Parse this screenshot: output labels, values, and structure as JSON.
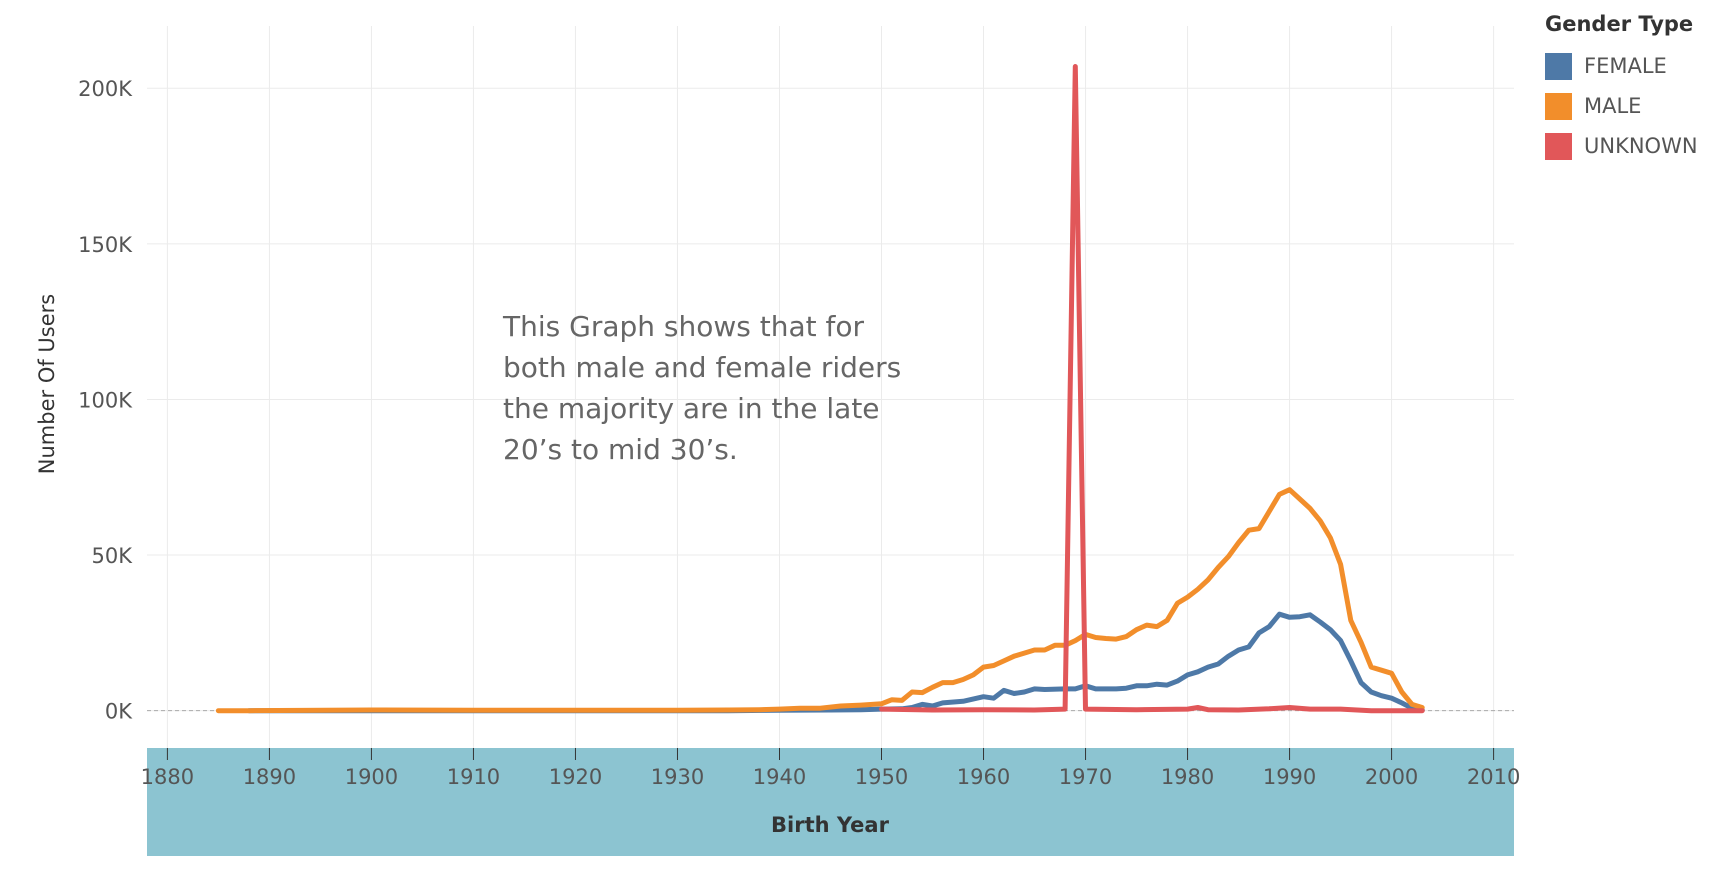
{
  "chart_data": {
    "type": "line",
    "xlabel": "Birth Year",
    "ylabel": "Number Of Users",
    "xlim": [
      1878,
      2012
    ],
    "ylim": [
      -12000,
      220000
    ],
    "x_ticks": [
      1880,
      1890,
      1900,
      1910,
      1920,
      1930,
      1940,
      1950,
      1960,
      1970,
      1980,
      1990,
      2000,
      2010
    ],
    "y_ticks": [
      {
        "value": 0,
        "label": "0K"
      },
      {
        "value": 50000,
        "label": "50K"
      },
      {
        "value": 100000,
        "label": "100K"
      },
      {
        "value": 150000,
        "label": "150K"
      },
      {
        "value": 200000,
        "label": "200K"
      }
    ],
    "grid": true,
    "annotation": [
      "This Graph shows that for",
      "both male and female riders",
      "the majority are in the late",
      "20’s to mid 30’s."
    ],
    "legend": {
      "title": "Gender Type",
      "placement": "top-right"
    },
    "series": [
      {
        "name": "FEMALE",
        "color": "#4e79a7",
        "points": [
          [
            1888,
            0
          ],
          [
            1890,
            0
          ],
          [
            1895,
            0
          ],
          [
            1900,
            0
          ],
          [
            1905,
            0
          ],
          [
            1910,
            0
          ],
          [
            1915,
            0
          ],
          [
            1920,
            0
          ],
          [
            1925,
            0
          ],
          [
            1930,
            0
          ],
          [
            1935,
            0
          ],
          [
            1940,
            100
          ],
          [
            1945,
            200
          ],
          [
            1948,
            300
          ],
          [
            1950,
            500
          ],
          [
            1952,
            600
          ],
          [
            1953,
            1000
          ],
          [
            1954,
            2000
          ],
          [
            1955,
            1500
          ],
          [
            1956,
            2500
          ],
          [
            1958,
            3000
          ],
          [
            1960,
            4500
          ],
          [
            1961,
            4000
          ],
          [
            1962,
            6500
          ],
          [
            1963,
            5500
          ],
          [
            1964,
            6000
          ],
          [
            1965,
            7000
          ],
          [
            1966,
            6800
          ],
          [
            1968,
            7000
          ],
          [
            1969,
            7000
          ],
          [
            1970,
            8000
          ],
          [
            1971,
            7000
          ],
          [
            1973,
            7000
          ],
          [
            1974,
            7200
          ],
          [
            1975,
            8000
          ],
          [
            1976,
            8000
          ],
          [
            1977,
            8500
          ],
          [
            1978,
            8200
          ],
          [
            1979,
            9500
          ],
          [
            1980,
            11500
          ],
          [
            1981,
            12500
          ],
          [
            1982,
            14000
          ],
          [
            1983,
            15000
          ],
          [
            1984,
            17500
          ],
          [
            1985,
            19500
          ],
          [
            1986,
            20500
          ],
          [
            1987,
            25000
          ],
          [
            1988,
            27000
          ],
          [
            1989,
            31000
          ],
          [
            1990,
            30000
          ],
          [
            1991,
            30200
          ],
          [
            1992,
            30800
          ],
          [
            1993,
            28500
          ],
          [
            1994,
            26000
          ],
          [
            1995,
            22500
          ],
          [
            1996,
            16000
          ],
          [
            1997,
            9000
          ],
          [
            1998,
            6000
          ],
          [
            1999,
            4800
          ],
          [
            2000,
            4000
          ],
          [
            2001,
            2500
          ],
          [
            2002,
            800
          ],
          [
            2003,
            300
          ]
        ]
      },
      {
        "name": "MALE",
        "color": "#f28e2b",
        "points": [
          [
            1885,
            0
          ],
          [
            1888,
            0
          ],
          [
            1900,
            200
          ],
          [
            1910,
            100
          ],
          [
            1920,
            100
          ],
          [
            1930,
            100
          ],
          [
            1935,
            200
          ],
          [
            1938,
            300
          ],
          [
            1940,
            500
          ],
          [
            1942,
            800
          ],
          [
            1944,
            800
          ],
          [
            1946,
            1500
          ],
          [
            1948,
            1800
          ],
          [
            1950,
            2200
          ],
          [
            1951,
            3500
          ],
          [
            1952,
            3300
          ],
          [
            1953,
            6000
          ],
          [
            1954,
            5800
          ],
          [
            1955,
            7500
          ],
          [
            1956,
            9000
          ],
          [
            1957,
            9000
          ],
          [
            1958,
            10000
          ],
          [
            1959,
            11500
          ],
          [
            1960,
            14000
          ],
          [
            1961,
            14500
          ],
          [
            1962,
            16000
          ],
          [
            1963,
            17500
          ],
          [
            1964,
            18500
          ],
          [
            1965,
            19500
          ],
          [
            1966,
            19500
          ],
          [
            1967,
            21000
          ],
          [
            1968,
            21000
          ],
          [
            1969,
            22500
          ],
          [
            1970,
            24500
          ],
          [
            1971,
            23500
          ],
          [
            1972,
            23200
          ],
          [
            1973,
            23000
          ],
          [
            1974,
            23800
          ],
          [
            1975,
            26000
          ],
          [
            1976,
            27500
          ],
          [
            1977,
            27000
          ],
          [
            1978,
            29000
          ],
          [
            1979,
            34500
          ],
          [
            1980,
            36500
          ],
          [
            1981,
            39000
          ],
          [
            1982,
            42000
          ],
          [
            1983,
            46000
          ],
          [
            1984,
            49500
          ],
          [
            1985,
            54000
          ],
          [
            1986,
            58000
          ],
          [
            1987,
            58500
          ],
          [
            1988,
            64000
          ],
          [
            1989,
            69500
          ],
          [
            1990,
            71000
          ],
          [
            1991,
            68000
          ],
          [
            1992,
            65000
          ],
          [
            1993,
            61000
          ],
          [
            1994,
            55500
          ],
          [
            1995,
            47000
          ],
          [
            1996,
            29000
          ],
          [
            1997,
            22000
          ],
          [
            1998,
            14000
          ],
          [
            1999,
            13000
          ],
          [
            2000,
            12000
          ],
          [
            2001,
            6000
          ],
          [
            2002,
            2000
          ],
          [
            2003,
            1000
          ]
        ]
      },
      {
        "name": "UNKNOWN",
        "color": "#e15759",
        "points": [
          [
            1950,
            500
          ],
          [
            1955,
            200
          ],
          [
            1960,
            300
          ],
          [
            1965,
            200
          ],
          [
            1968,
            500
          ],
          [
            1969,
            207000
          ],
          [
            1970,
            500
          ],
          [
            1975,
            300
          ],
          [
            1980,
            500
          ],
          [
            1981,
            1000
          ],
          [
            1982,
            300
          ],
          [
            1985,
            200
          ],
          [
            1988,
            600
          ],
          [
            1990,
            1000
          ],
          [
            1992,
            500
          ],
          [
            1995,
            500
          ],
          [
            1998,
            0
          ],
          [
            2000,
            0
          ],
          [
            2003,
            0
          ]
        ]
      }
    ]
  }
}
